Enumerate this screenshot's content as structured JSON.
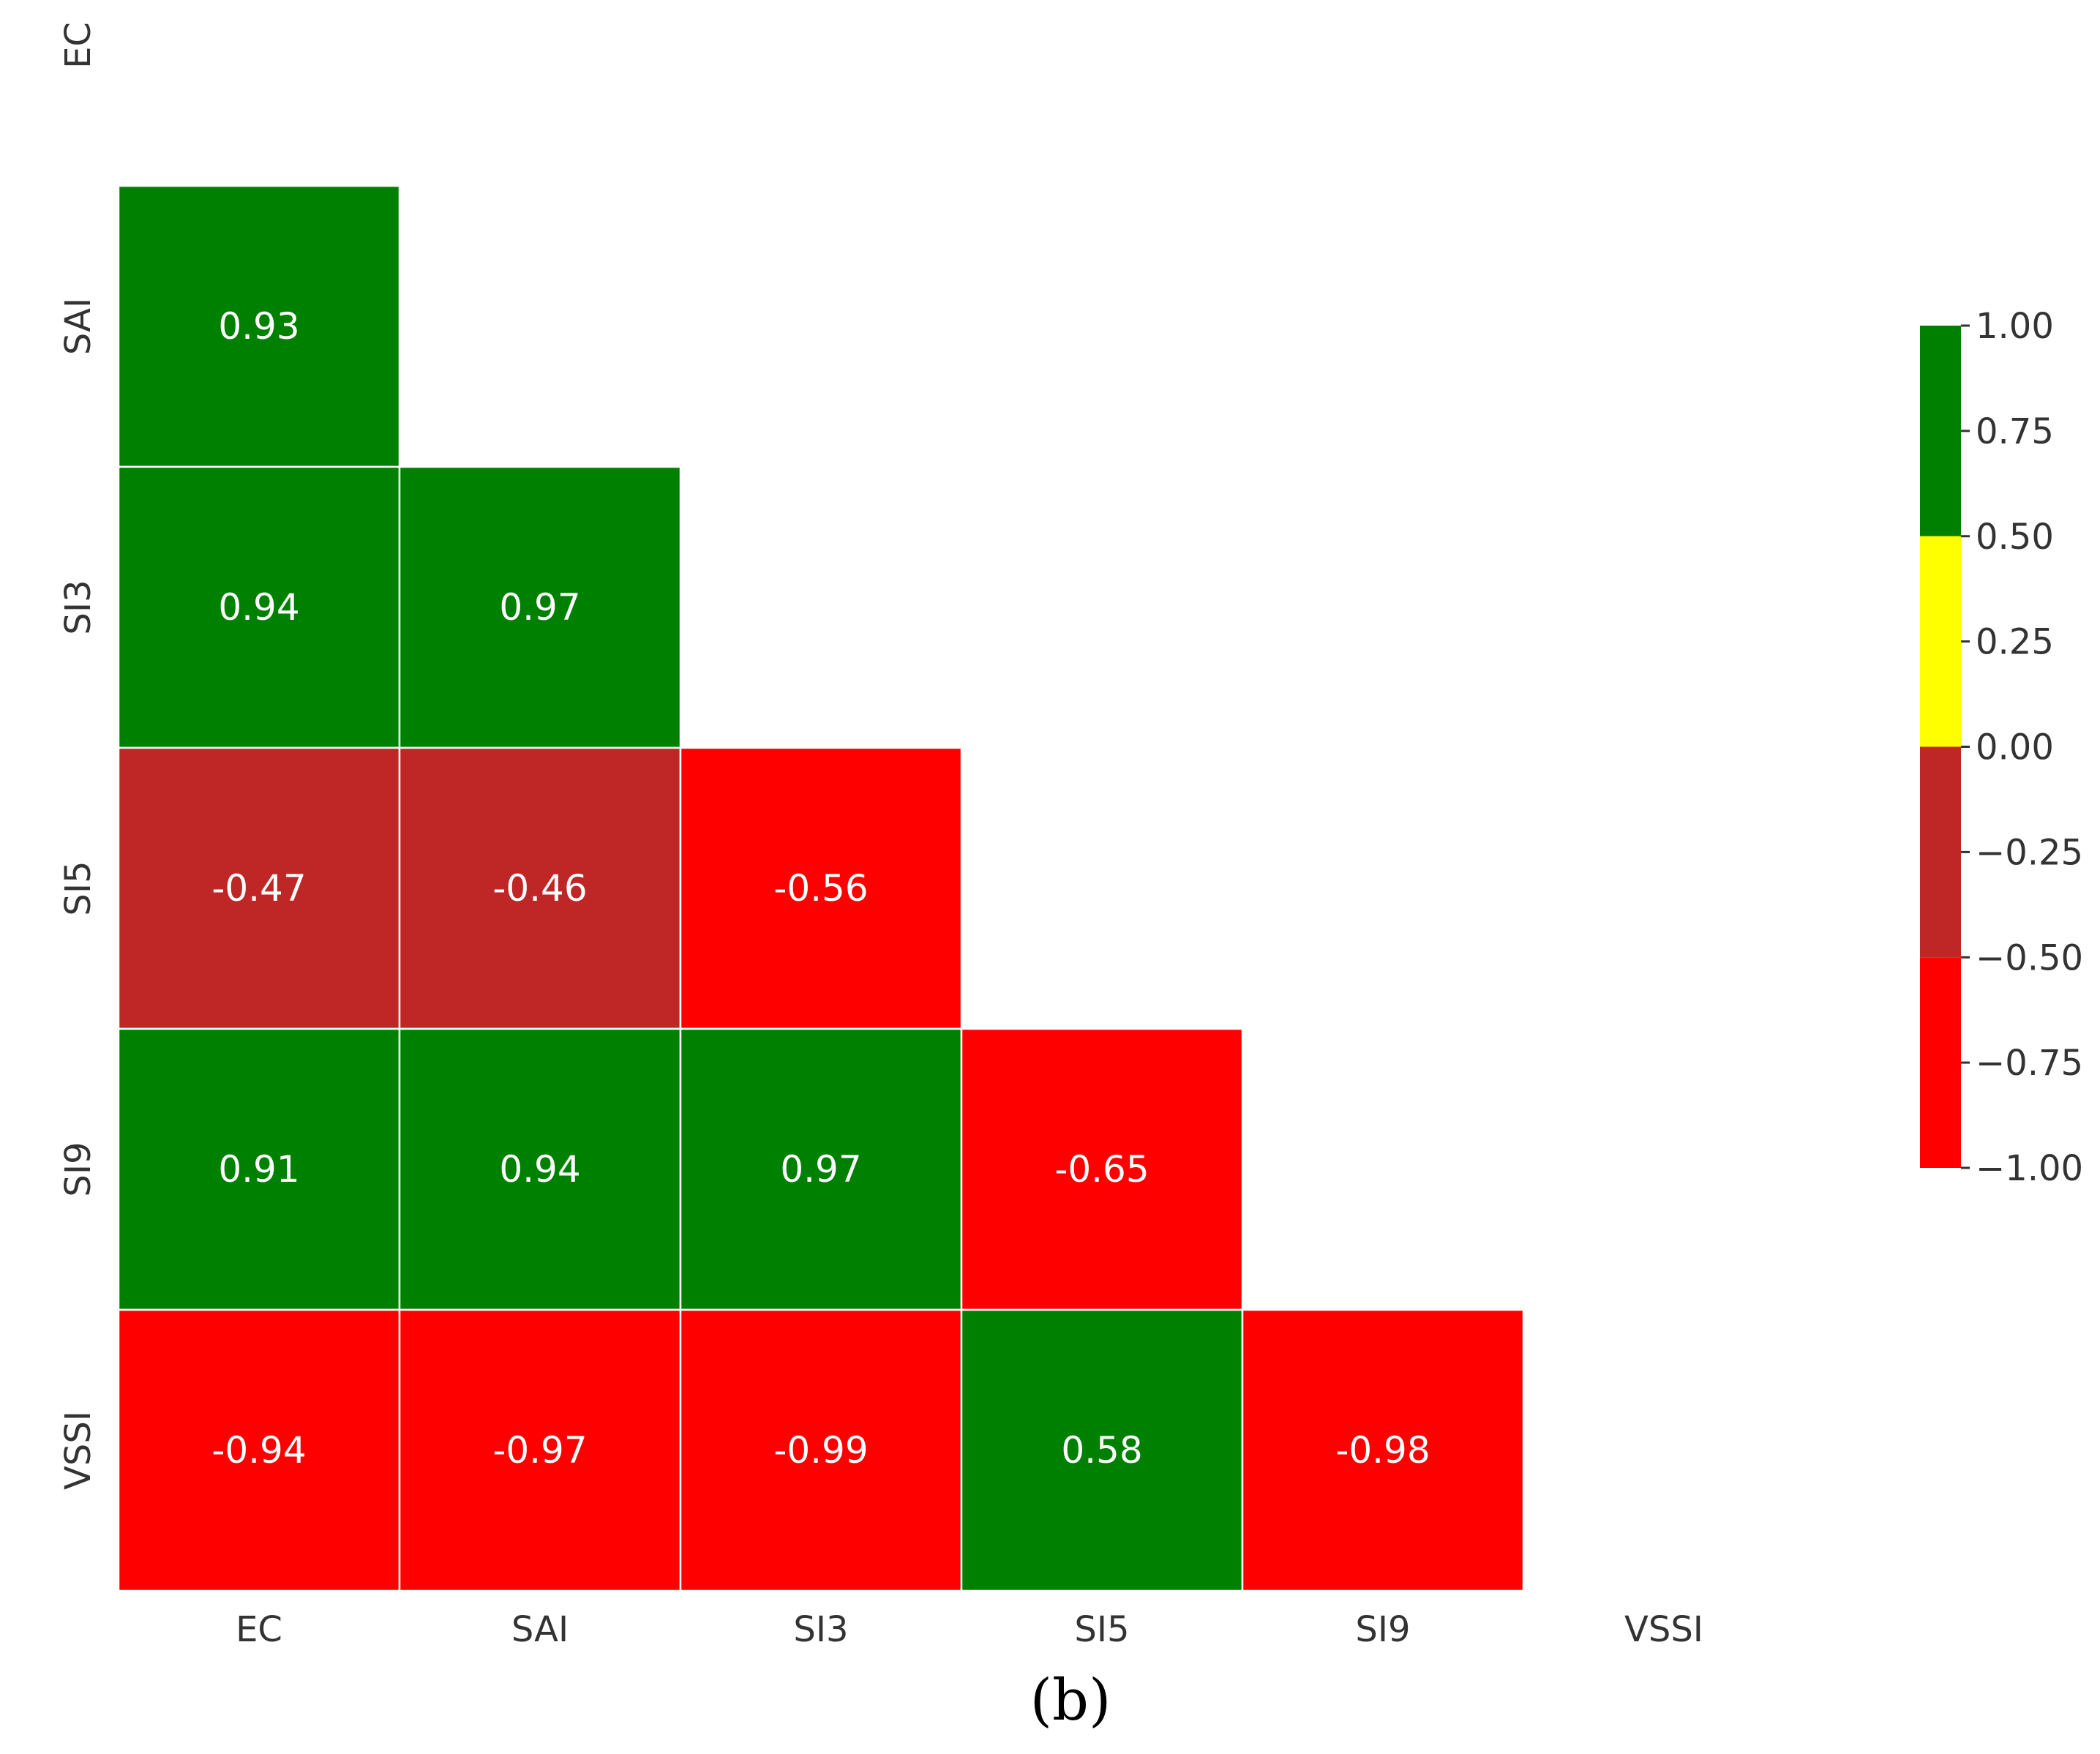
{
  "chart_data": {
    "type": "heatmap",
    "variables": [
      "EC",
      "SAI",
      "SI3",
      "SI5",
      "SI9",
      "VSSI"
    ],
    "x_tick_labels": [
      "EC",
      "SAI",
      "SI3",
      "SI5",
      "SI9",
      "VSSI"
    ],
    "y_tick_labels": [
      "EC",
      "SAI",
      "SI3",
      "SI5",
      "SI9",
      "VSSI"
    ],
    "matrix": [
      [
        null,
        null,
        null,
        null,
        null,
        null
      ],
      [
        0.93,
        null,
        null,
        null,
        null,
        null
      ],
      [
        0.94,
        0.97,
        null,
        null,
        null,
        null
      ],
      [
        -0.47,
        -0.46,
        -0.56,
        null,
        null,
        null
      ],
      [
        0.91,
        0.94,
        0.97,
        -0.65,
        null,
        null
      ],
      [
        -0.94,
        -0.97,
        -0.99,
        0.58,
        -0.98,
        null
      ]
    ],
    "cell_labels": [
      [
        null,
        null,
        null,
        null,
        null,
        null
      ],
      [
        "0.93",
        null,
        null,
        null,
        null,
        null
      ],
      [
        "0.94",
        "0.97",
        null,
        null,
        null,
        null
      ],
      [
        "-0.47",
        "-0.46",
        "-0.56",
        null,
        null,
        null
      ],
      [
        "0.91",
        "0.94",
        "0.97",
        "-0.65",
        null,
        null
      ],
      [
        "-0.94",
        "-0.97",
        "-0.99",
        "0.58",
        "-0.98",
        null
      ]
    ],
    "mask": "lower triangle shown, diagonal and upper triangle hidden",
    "colorbar": {
      "range": [
        -1.0,
        1.0
      ],
      "ticks": [
        1.0,
        0.75,
        0.5,
        0.25,
        0.0,
        -0.25,
        -0.5,
        -0.75,
        -1.0
      ],
      "tick_labels": [
        "1.00",
        "0.75",
        "0.50",
        "0.25",
        "0.00",
        "−0.25",
        "−0.50",
        "−0.75",
        "−1.00"
      ],
      "bins": [
        {
          "from": -1.0,
          "to": -0.5,
          "color": "#ff0000"
        },
        {
          "from": -0.5,
          "to": 0.0,
          "color": "#bf2626"
        },
        {
          "from": 0.0,
          "to": 0.5,
          "color": "#ffff00"
        },
        {
          "from": 0.5,
          "to": 1.0,
          "color": "#008000"
        }
      ]
    },
    "cell_text_color": "#ffffff",
    "grid_line_color": "#ffffff",
    "panel_label": "(b)"
  }
}
